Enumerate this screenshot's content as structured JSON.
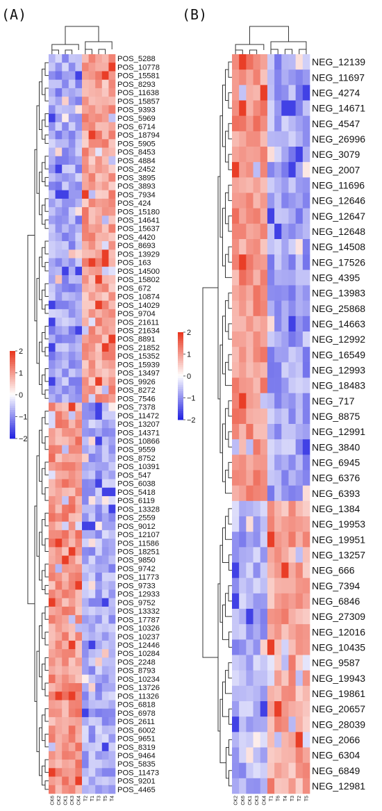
{
  "chart_data": [
    {
      "type": "heatmap",
      "panel_label": "(A)",
      "columns": [
        "CK6",
        "CK2",
        "CK1",
        "CK3",
        "CK4",
        "T2",
        "T1",
        "T3",
        "T5",
        "T4"
      ],
      "rows": [
        "POS_5288",
        "POS_10778",
        "POS_15581",
        "POS_8293",
        "POS_11638",
        "POS_15857",
        "POS_9393",
        "POS_5969",
        "POS_6714",
        "POS_18794",
        "POS_5905",
        "POS_8453",
        "POS_4884",
        "POS_2452",
        "POS_3895",
        "POS_3893",
        "POS_7934",
        "POS_424",
        "POS_15180",
        "POS_14641",
        "POS_15637",
        "POS_4420",
        "POS_8693",
        "POS_13929",
        "POS_163",
        "POS_14500",
        "POS_15802",
        "POS_672",
        "POS_10874",
        "POS_14029",
        "POS_9704",
        "POS_21611",
        "POS_21634",
        "POS_8891",
        "POS_21852",
        "POS_15352",
        "POS_15939",
        "POS_13497",
        "POS_9926",
        "POS_8272",
        "POS_7546",
        "POS_7378",
        "POS_11472",
        "POS_13207",
        "POS_14371",
        "POS_10866",
        "POS_9559",
        "POS_8752",
        "POS_10391",
        "POS_547",
        "POS_6038",
        "POS_5418",
        "POS_6119",
        "POS_13328",
        "POS_2559",
        "POS_9012",
        "POS_12107",
        "POS_11586",
        "POS_18251",
        "POS_9850",
        "POS_9742",
        "POS_11773",
        "POS_9733",
        "POS_12933",
        "POS_9752",
        "POS_13332",
        "POS_17787",
        "POS_10326",
        "POS_10237",
        "POS_12446",
        "POS_10284",
        "POS_2248",
        "POS_8793",
        "POS_10234",
        "POS_13726",
        "POS_11326",
        "POS_6818",
        "POS_6978",
        "POS_2611",
        "POS_6002",
        "POS_9651",
        "POS_8319",
        "POS_9464",
        "POS_5835",
        "POS_11473",
        "POS_9201",
        "POS_4465"
      ],
      "upper_cluster_rows": 41,
      "pattern": "upper cluster: low in CK, high in T; lower cluster: high in CK, low in T",
      "color_scale": {
        "min": -2,
        "max": 2,
        "ticks": [
          2,
          1,
          0,
          -1,
          -2
        ],
        "low_color": "#2020e0",
        "mid_color": "#ffffff",
        "high_color": "#e8341c"
      }
    },
    {
      "type": "heatmap",
      "panel_label": "(B)",
      "columns": [
        "CK2",
        "CK6",
        "CK1",
        "CK3",
        "CK4",
        "T1",
        "T6",
        "T4",
        "T3",
        "T2",
        "T5"
      ],
      "rows": [
        "NEG_12139",
        "NEG_11697",
        "NEG_4274",
        "NEG_14671",
        "NEG_4547",
        "NEG_26996",
        "NEG_3079",
        "NEG_2007",
        "NEG_11696",
        "NEG_12646",
        "NEG_12647",
        "NEG_12648",
        "NEG_14508",
        "NEG_17526",
        "NEG_4395",
        "NEG_13983",
        "NEG_25868",
        "NEG_14663",
        "NEG_12992",
        "NEG_16549",
        "NEG_12993",
        "NEG_18483",
        "NEG_717",
        "NEG_8875",
        "NEG_12991",
        "NEG_3840",
        "NEG_6945",
        "NEG_6376",
        "NEG_6393",
        "NEG_1384",
        "NEG_19953",
        "NEG_19951",
        "NEG_13257",
        "NEG_666",
        "NEG_7394",
        "NEG_6846",
        "NEG_27309",
        "NEG_12016",
        "NEG_10435",
        "NEG_9587",
        "NEG_19943",
        "NEG_19861",
        "NEG_20657",
        "NEG_28039",
        "NEG_2066",
        "NEG_6304",
        "NEG_6849",
        "NEG_12981"
      ],
      "upper_cluster_rows": 29,
      "pattern": "upper cluster: high in CK, low in T; lower cluster: low in CK, high in T",
      "color_scale": {
        "min": -2,
        "max": 2,
        "ticks": [
          2,
          1,
          0,
          -1,
          -2
        ],
        "low_color": "#2020e0",
        "mid_color": "#ffffff",
        "high_color": "#e8341c"
      }
    }
  ]
}
